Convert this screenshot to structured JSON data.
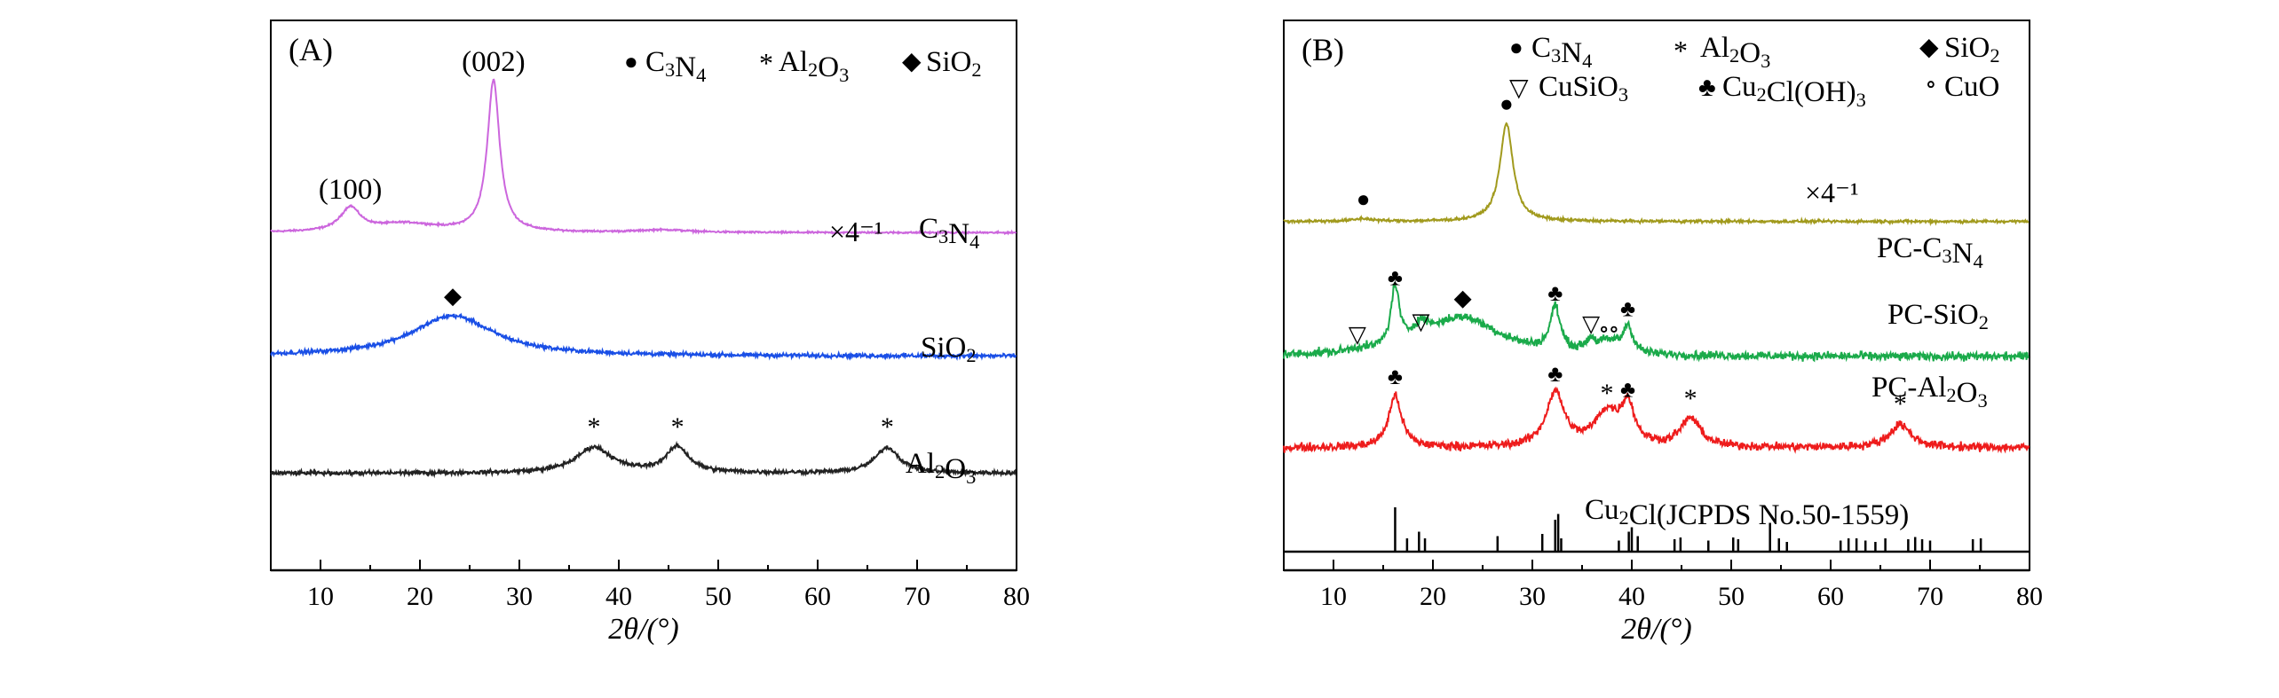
{
  "chart_data": [
    {
      "type": "line",
      "panel_label": "(A)",
      "xlabel": "2θ/(°)",
      "ylabel": "",
      "xlim": [
        5,
        80
      ],
      "xticks": [
        10,
        20,
        30,
        40,
        50,
        60,
        70,
        80
      ],
      "legend": [
        {
          "symbol": "●",
          "text": "C3N4"
        },
        {
          "symbol": "*",
          "text": "Al2O3"
        },
        {
          "symbol": "◆",
          "text": "SiO2"
        }
      ],
      "series": [
        {
          "name": "C3N4",
          "label_text": "C3N4",
          "scale_text": "×4⁻¹",
          "color": "#cc66dd",
          "baseline": 6.2,
          "noise": 0.03,
          "peaks": [
            {
              "x": 13.0,
              "height": 0.55,
              "width": 1.2,
              "annotation": "(100)"
            },
            {
              "x": 18.5,
              "height": 0.2,
              "width": 4.0
            },
            {
              "x": 27.4,
              "height": 3.55,
              "width": 0.75,
              "annotation": "(002)"
            },
            {
              "x": 44.5,
              "height": 0.06,
              "width": 3.0
            }
          ]
        },
        {
          "name": "SiO2",
          "label_text": "SiO2",
          "color": "#1a4fe6",
          "baseline": 3.3,
          "noise": 0.07,
          "peaks": [
            {
              "x": 23.3,
              "height": 0.95,
              "width": 5.0,
              "marker": "◆"
            }
          ]
        },
        {
          "name": "Al2O3",
          "label_text": "Al2O3",
          "color": "#222222",
          "baseline": 0.55,
          "noise": 0.07,
          "peaks": [
            {
              "x": 37.5,
              "height": 0.6,
              "width": 2.2,
              "marker": "*"
            },
            {
              "x": 45.9,
              "height": 0.6,
              "width": 1.4,
              "marker": "*"
            },
            {
              "x": 67.0,
              "height": 0.6,
              "width": 1.5,
              "marker": "*"
            }
          ]
        }
      ]
    },
    {
      "type": "line",
      "panel_label": "(B)",
      "xlabel": "2θ/(°)",
      "ylabel": "",
      "xlim": [
        5,
        80
      ],
      "xticks": [
        10,
        20,
        30,
        40,
        50,
        60,
        70,
        80
      ],
      "legend": [
        {
          "symbol": "●",
          "text": "C3N4"
        },
        {
          "symbol": "*",
          "text": "Al2O3"
        },
        {
          "symbol": "◆",
          "text": "SiO2"
        },
        {
          "symbol": "▽",
          "text": "CuSiO3"
        },
        {
          "symbol": "♣",
          "text": "Cu2Cl(OH)3"
        },
        {
          "symbol": "∘",
          "text": "CuO"
        }
      ],
      "series": [
        {
          "name": "PC-C3N4",
          "label_text": "PC-C3N4",
          "scale_text": "×4⁻¹",
          "color": "#a19a1d",
          "baseline": 5.35,
          "noise": 0.04,
          "peaks": [
            {
              "x": 13.0,
              "height": 0.05,
              "width": 1.2,
              "marker": "●"
            },
            {
              "x": 27.4,
              "height": 1.9,
              "width": 0.8,
              "marker": "●"
            }
          ]
        },
        {
          "name": "PC-SiO2",
          "label_text": "PC-SiO2",
          "color": "#1aaa4a",
          "baseline": 2.72,
          "noise": 0.12,
          "peaks": [
            {
              "x": 12.4,
              "height": 0.05,
              "width": 1.0,
              "marker": "▽"
            },
            {
              "x": 16.2,
              "height": 1.15,
              "width": 0.5,
              "marker": "♣"
            },
            {
              "x": 18.8,
              "height": 0.3,
              "width": 1.0,
              "marker": "▽"
            },
            {
              "x": 23.0,
              "height": 0.75,
              "width": 4.5,
              "marker": "◆"
            },
            {
              "x": 32.3,
              "height": 0.85,
              "width": 0.6,
              "marker": "♣"
            },
            {
              "x": 35.9,
              "height": 0.25,
              "width": 0.6,
              "marker": "▽"
            },
            {
              "x": 37.2,
              "height": 0.15,
              "width": 0.6,
              "marker": "∘"
            },
            {
              "x": 38.2,
              "height": 0.15,
              "width": 0.6,
              "marker": "∘"
            },
            {
              "x": 39.6,
              "height": 0.55,
              "width": 0.6,
              "marker": "♣"
            }
          ]
        },
        {
          "name": "PC-Al2O3",
          "label_text": "PC-Al2O3",
          "color": "#ee1c1c",
          "baseline": 0.95,
          "noise": 0.12,
          "peaks": [
            {
              "x": 16.2,
              "height": 1.0,
              "width": 0.8,
              "marker": "♣"
            },
            {
              "x": 32.3,
              "height": 1.05,
              "width": 1.1,
              "marker": "♣"
            },
            {
              "x": 37.5,
              "height": 0.65,
              "width": 1.5,
              "marker": "*"
            },
            {
              "x": 39.6,
              "height": 0.75,
              "width": 0.8,
              "marker": "♣"
            },
            {
              "x": 45.9,
              "height": 0.55,
              "width": 1.2,
              "marker": "*"
            },
            {
              "x": 67.0,
              "height": 0.45,
              "width": 1.3,
              "marker": "*"
            }
          ]
        }
      ],
      "reference_pattern": {
        "label_text": "Cu2Cl(JCPDS No.50-1559)",
        "lines": [
          [
            16.2,
            1.0
          ],
          [
            17.4,
            0.3
          ],
          [
            18.6,
            0.45
          ],
          [
            19.2,
            0.3
          ],
          [
            26.5,
            0.35
          ],
          [
            31.0,
            0.4
          ],
          [
            32.3,
            0.72
          ],
          [
            32.6,
            0.85
          ],
          [
            32.9,
            0.3
          ],
          [
            38.7,
            0.25
          ],
          [
            39.7,
            0.45
          ],
          [
            40.0,
            0.55
          ],
          [
            40.6,
            0.35
          ],
          [
            44.3,
            0.28
          ],
          [
            44.9,
            0.32
          ],
          [
            47.7,
            0.25
          ],
          [
            50.2,
            0.32
          ],
          [
            50.7,
            0.28
          ],
          [
            53.9,
            0.65
          ],
          [
            54.8,
            0.3
          ],
          [
            55.6,
            0.22
          ],
          [
            61.0,
            0.25
          ],
          [
            61.8,
            0.3
          ],
          [
            62.6,
            0.3
          ],
          [
            63.5,
            0.25
          ],
          [
            64.5,
            0.22
          ],
          [
            65.5,
            0.3
          ],
          [
            67.8,
            0.28
          ],
          [
            68.5,
            0.33
          ],
          [
            69.2,
            0.28
          ],
          [
            70.0,
            0.25
          ],
          [
            74.3,
            0.28
          ],
          [
            75.1,
            0.3
          ]
        ]
      }
    }
  ]
}
